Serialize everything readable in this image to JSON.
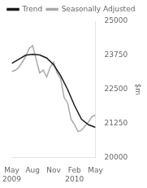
{
  "chart_data": {
    "type": "line",
    "ylabel": "$m",
    "series": [
      {
        "name": "Trend",
        "color": "#1a1a1a",
        "x": [
          0,
          1,
          2,
          3,
          4,
          5,
          6,
          7,
          8,
          9,
          10,
          11,
          12
        ],
        "values": [
          23450,
          23600,
          23750,
          23780,
          23760,
          23650,
          23400,
          23000,
          22500,
          21900,
          21400,
          21200,
          21100
        ]
      },
      {
        "name": "Seasonally Adjusted",
        "color": "#aaaaaa",
        "x": [
          0,
          0.5,
          1,
          1.5,
          2,
          2.5,
          3,
          3.5,
          4,
          4.5,
          5,
          5.5,
          6,
          6.5,
          7,
          7.5,
          8,
          8.5,
          9,
          9.5,
          10,
          10.5,
          11,
          11.5,
          12
        ],
        "values": [
          23150,
          23200,
          23300,
          23500,
          23700,
          24000,
          24100,
          23600,
          23100,
          23200,
          22950,
          23300,
          23500,
          23100,
          22900,
          22200,
          22000,
          21400,
          21200,
          20950,
          21000,
          21150,
          21300,
          21500,
          21550
        ]
      }
    ],
    "xlim": [
      0,
      12
    ],
    "xticks": [
      {
        "value": 0,
        "label": "May\n2009"
      },
      {
        "value": 3,
        "label": "Aug"
      },
      {
        "value": 6,
        "label": "Nov"
      },
      {
        "value": 9,
        "label": "Feb\n2010"
      },
      {
        "value": 12,
        "label": "May"
      }
    ],
    "ylim": [
      20000,
      25000
    ],
    "yticks": [
      20000,
      21250,
      22500,
      23750,
      25000
    ],
    "grid": false,
    "legend": "upper left"
  }
}
